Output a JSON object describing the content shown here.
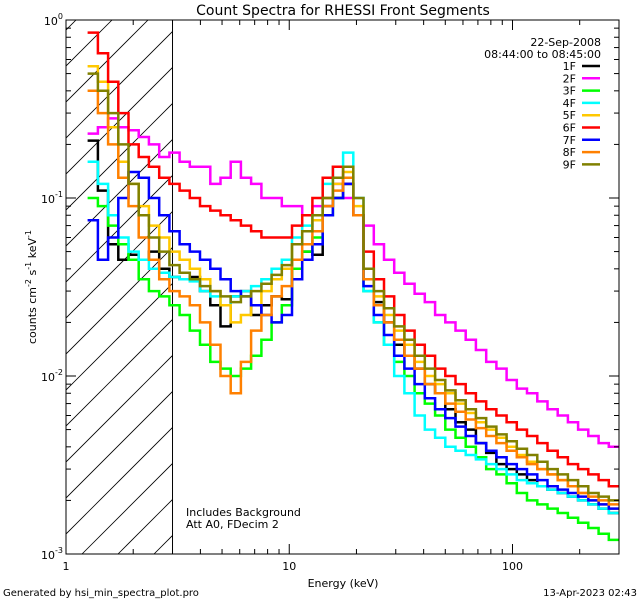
{
  "chart_data": {
    "type": "line",
    "title": "Count Spectra for RHESSI Front Segments",
    "xlabel": "Energy (keV)",
    "ylabel_main": "counts cm",
    "ylabel_exp1": "-2",
    "ylabel_mid": " s",
    "ylabel_exp2": "-1",
    "ylabel_unit": " keV",
    "ylabel_exp3": "-1",
    "xscale": "log",
    "yscale": "log",
    "xlim": [
      1,
      300
    ],
    "ylim": [
      0.001,
      1
    ],
    "x_ticks": [
      {
        "value": 1,
        "label": "1"
      },
      {
        "value": 10,
        "label": "10"
      },
      {
        "value": 100,
        "label": "100"
      }
    ],
    "y_ticks": [
      {
        "value": 1,
        "base": "10",
        "exp": "0"
      },
      {
        "value": 0.1,
        "base": "10",
        "exp": "-1"
      },
      {
        "value": 0.01,
        "base": "10",
        "exp": "-2"
      },
      {
        "value": 0.001,
        "base": "10",
        "exp": "-3"
      }
    ],
    "hatched_region_keV": [
      1,
      3
    ],
    "date": "22-Sep-2008",
    "time_range": "08:44:00 to 08:45:00",
    "annotations": [
      "Includes Background",
      "Att A0, FDecim 2"
    ],
    "series": [
      {
        "name": "1F",
        "color": "#000000",
        "values": [
          0.21,
          0.11,
          0.055,
          0.045,
          0.048,
          0.045,
          0.05,
          0.04,
          0.036,
          0.035,
          0.036,
          0.03,
          0.025,
          0.019,
          0.028,
          0.03,
          0.022,
          0.025,
          0.028,
          0.027,
          0.045,
          0.05,
          0.048,
          0.09,
          0.1,
          0.12,
          0.08,
          0.035,
          0.026,
          0.02,
          0.015,
          0.013,
          0.011,
          0.009,
          0.008,
          0.0065,
          0.0055,
          0.005,
          0.0042,
          0.0037,
          0.0032,
          0.003,
          0.0028,
          0.0026,
          0.0024,
          0.0023,
          0.0022,
          0.0021,
          0.002,
          0.0019,
          0.0018,
          0.0017
        ]
      },
      {
        "name": "2F",
        "color": "#ff00ff",
        "values": [
          0.23,
          0.25,
          0.28,
          0.25,
          0.24,
          0.22,
          0.2,
          0.17,
          0.18,
          0.16,
          0.15,
          0.15,
          0.12,
          0.13,
          0.16,
          0.13,
          0.12,
          0.1,
          0.1,
          0.09,
          0.09,
          0.08,
          0.09,
          0.1,
          0.12,
          0.1,
          0.08,
          0.07,
          0.055,
          0.045,
          0.038,
          0.033,
          0.029,
          0.026,
          0.022,
          0.02,
          0.018,
          0.016,
          0.014,
          0.012,
          0.011,
          0.0095,
          0.0085,
          0.008,
          0.0072,
          0.0065,
          0.006,
          0.0055,
          0.005,
          0.0046,
          0.0042,
          0.004
        ]
      },
      {
        "name": "3F",
        "color": "#00ff00",
        "values": [
          0.1,
          0.09,
          0.07,
          0.055,
          0.045,
          0.035,
          0.03,
          0.028,
          0.025,
          0.022,
          0.018,
          0.015,
          0.012,
          0.011,
          0.01,
          0.011,
          0.013,
          0.016,
          0.02,
          0.025,
          0.04,
          0.05,
          0.06,
          0.08,
          0.1,
          0.12,
          0.08,
          0.03,
          0.02,
          0.015,
          0.012,
          0.01,
          0.008,
          0.007,
          0.006,
          0.005,
          0.0045,
          0.004,
          0.0035,
          0.003,
          0.0028,
          0.0025,
          0.0022,
          0.002,
          0.0019,
          0.0018,
          0.0017,
          0.0016,
          0.0015,
          0.0014,
          0.0013,
          0.0012
        ]
      },
      {
        "name": "4F",
        "color": "#00ffff",
        "values": [
          0.16,
          0.12,
          0.08,
          0.06,
          0.05,
          0.045,
          0.04,
          0.038,
          0.036,
          0.035,
          0.034,
          0.03,
          0.028,
          0.025,
          0.028,
          0.03,
          0.032,
          0.035,
          0.04,
          0.045,
          0.06,
          0.07,
          0.08,
          0.12,
          0.15,
          0.18,
          0.1,
          0.03,
          0.02,
          0.015,
          0.01,
          0.008,
          0.006,
          0.005,
          0.0045,
          0.004,
          0.0038,
          0.0036,
          0.0034,
          0.0032,
          0.003,
          0.0028,
          0.0026,
          0.0025,
          0.0024,
          0.0023,
          0.0022,
          0.0021,
          0.002,
          0.0019,
          0.0018,
          0.0017
        ]
      },
      {
        "name": "5F",
        "color": "#ffc800",
        "values": [
          0.55,
          0.45,
          0.25,
          0.16,
          0.12,
          0.09,
          0.07,
          0.06,
          0.05,
          0.045,
          0.04,
          0.035,
          0.03,
          0.025,
          0.02,
          0.022,
          0.025,
          0.03,
          0.035,
          0.04,
          0.055,
          0.065,
          0.075,
          0.1,
          0.12,
          0.14,
          0.09,
          0.04,
          0.028,
          0.022,
          0.018,
          0.015,
          0.012,
          0.01,
          0.009,
          0.008,
          0.007,
          0.0062,
          0.0055,
          0.005,
          0.0045,
          0.004,
          0.0036,
          0.0033,
          0.003,
          0.0028,
          0.0026,
          0.0024,
          0.0022,
          0.002,
          0.0019,
          0.0018
        ]
      },
      {
        "name": "6F",
        "color": "#ff0000",
        "values": [
          0.85,
          0.65,
          0.45,
          0.3,
          0.2,
          0.17,
          0.15,
          0.13,
          0.12,
          0.11,
          0.1,
          0.09,
          0.085,
          0.08,
          0.075,
          0.07,
          0.065,
          0.06,
          0.06,
          0.06,
          0.07,
          0.08,
          0.1,
          0.13,
          0.15,
          0.12,
          0.08,
          0.05,
          0.035,
          0.028,
          0.022,
          0.018,
          0.015,
          0.013,
          0.011,
          0.01,
          0.009,
          0.008,
          0.0072,
          0.0065,
          0.006,
          0.0055,
          0.005,
          0.0046,
          0.0042,
          0.0038,
          0.0035,
          0.0032,
          0.003,
          0.0028,
          0.0026,
          0.0024
        ]
      },
      {
        "name": "7F",
        "color": "#0000ff",
        "values": [
          0.075,
          0.045,
          0.06,
          0.1,
          0.14,
          0.13,
          0.1,
          0.08,
          0.065,
          0.055,
          0.05,
          0.045,
          0.04,
          0.035,
          0.03,
          0.028,
          0.025,
          0.022,
          0.02,
          0.022,
          0.035,
          0.045,
          0.055,
          0.08,
          0.1,
          0.12,
          0.08,
          0.032,
          0.022,
          0.017,
          0.013,
          0.011,
          0.009,
          0.0075,
          0.0065,
          0.0058,
          0.0052,
          0.0046,
          0.0042,
          0.0038,
          0.0035,
          0.0032,
          0.003,
          0.0028,
          0.0026,
          0.0024,
          0.0023,
          0.0022,
          0.0021,
          0.002,
          0.0019,
          0.0018
        ]
      },
      {
        "name": "8F",
        "color": "#ff8000",
        "values": [
          0.4,
          0.3,
          0.2,
          0.13,
          0.09,
          0.06,
          0.045,
          0.035,
          0.03,
          0.028,
          0.025,
          0.02,
          0.015,
          0.01,
          0.008,
          0.012,
          0.018,
          0.022,
          0.028,
          0.032,
          0.045,
          0.055,
          0.065,
          0.09,
          0.11,
          0.13,
          0.08,
          0.035,
          0.025,
          0.02,
          0.016,
          0.013,
          0.011,
          0.009,
          0.008,
          0.007,
          0.0063,
          0.0057,
          0.0051,
          0.0046,
          0.0042,
          0.0038,
          0.0035,
          0.0032,
          0.003,
          0.0028,
          0.0026,
          0.0024,
          0.0022,
          0.0021,
          0.002,
          0.0019
        ]
      },
      {
        "name": "9F",
        "color": "#808000",
        "values": [
          0.5,
          0.4,
          0.3,
          0.2,
          0.12,
          0.08,
          0.06,
          0.05,
          0.042,
          0.038,
          0.035,
          0.032,
          0.03,
          0.028,
          0.026,
          0.028,
          0.03,
          0.033,
          0.037,
          0.042,
          0.055,
          0.065,
          0.08,
          0.1,
          0.13,
          0.15,
          0.1,
          0.04,
          0.03,
          0.024,
          0.019,
          0.016,
          0.013,
          0.011,
          0.0095,
          0.0083,
          0.0073,
          0.0065,
          0.0058,
          0.0052,
          0.0047,
          0.0043,
          0.0039,
          0.0036,
          0.0033,
          0.003,
          0.0028,
          0.0026,
          0.0024,
          0.0022,
          0.0021,
          0.002
        ]
      }
    ]
  },
  "footer": {
    "generated_by": "Generated by hsi_min_spectra_plot.pro",
    "timestamp": "13-Apr-2023 02:43"
  }
}
